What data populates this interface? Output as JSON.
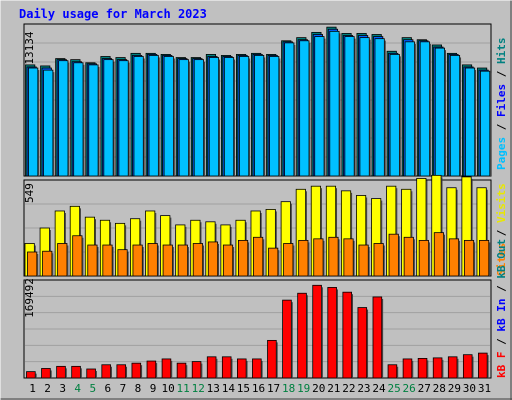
{
  "chart_data": [
    {
      "type": "bar",
      "title": "Daily usage for March 2023",
      "categories": [
        "1",
        "2",
        "3",
        "4",
        "5",
        "6",
        "7",
        "8",
        "9",
        "10",
        "11",
        "12",
        "13",
        "14",
        "15",
        "16",
        "17",
        "18",
        "19",
        "20",
        "21",
        "22",
        "23",
        "24",
        "25",
        "26",
        "27",
        "28",
        "29",
        "30",
        "31"
      ],
      "weekend_days": [
        "4",
        "5",
        "11",
        "12",
        "18",
        "19",
        "25",
        "26"
      ],
      "ylim": [
        0,
        14500
      ],
      "ytick": "13134",
      "ylabel_parts": [
        "Pages",
        "Files",
        "Hits"
      ],
      "series": [
        {
          "name": "Hits",
          "color": "#008080",
          "values": [
            10600,
            10500,
            11200,
            11100,
            10800,
            11400,
            11300,
            11700,
            11700,
            11600,
            11300,
            11300,
            11600,
            11500,
            11600,
            11700,
            11600,
            12900,
            13200,
            13700,
            14200,
            13600,
            13600,
            13500,
            11900,
            13200,
            13000,
            12500,
            11700,
            10600,
            10300
          ]
        },
        {
          "name": "Files",
          "color": "#0060ff",
          "values": [
            10400,
            10300,
            11100,
            10900,
            10700,
            11200,
            11100,
            11500,
            11600,
            11500,
            11200,
            11200,
            11400,
            11400,
            11500,
            11600,
            11500,
            12800,
            13000,
            13500,
            14000,
            13400,
            13400,
            13300,
            11700,
            13000,
            12900,
            12300,
            11600,
            10400,
            10100
          ]
        },
        {
          "name": "Pages",
          "color": "#00c0ff",
          "values": [
            10300,
            10100,
            11000,
            10800,
            10600,
            11100,
            11000,
            11400,
            11500,
            11400,
            11100,
            11100,
            11300,
            11300,
            11400,
            11500,
            11400,
            12700,
            12900,
            13300,
            13800,
            13300,
            13200,
            13100,
            11600,
            12800,
            12800,
            12200,
            11500,
            10300,
            10000
          ]
        }
      ]
    },
    {
      "type": "bar",
      "categories": [
        "1",
        "2",
        "3",
        "4",
        "5",
        "6",
        "7",
        "8",
        "9",
        "10",
        "11",
        "12",
        "13",
        "14",
        "15",
        "16",
        "17",
        "18",
        "19",
        "20",
        "21",
        "22",
        "23",
        "24",
        "25",
        "26",
        "27",
        "28",
        "29",
        "30",
        "31"
      ],
      "ylim": [
        0,
        620
      ],
      "ytick": "549",
      "ylabel_parts": [
        "Sites",
        "Visits"
      ],
      "series": [
        {
          "name": "Visits",
          "color": "#ffff00",
          "values": [
            210,
            310,
            420,
            450,
            380,
            360,
            340,
            370,
            420,
            390,
            330,
            360,
            350,
            330,
            360,
            420,
            430,
            480,
            560,
            580,
            580,
            550,
            520,
            500,
            580,
            560,
            630,
            650,
            570,
            640,
            570
          ]
        },
        {
          "name": "Sites",
          "color": "#ff8000",
          "values": [
            155,
            160,
            210,
            260,
            200,
            200,
            170,
            200,
            210,
            200,
            200,
            210,
            220,
            200,
            230,
            250,
            180,
            210,
            230,
            240,
            250,
            240,
            200,
            210,
            270,
            250,
            230,
            280,
            240,
            230,
            230
          ]
        }
      ]
    },
    {
      "type": "bar",
      "categories": [
        "1",
        "2",
        "3",
        "4",
        "5",
        "6",
        "7",
        "8",
        "9",
        "10",
        "11",
        "12",
        "13",
        "14",
        "15",
        "16",
        "17",
        "18",
        "19",
        "20",
        "21",
        "22",
        "23",
        "24",
        "25",
        "26",
        "27",
        "28",
        "29",
        "30",
        "31"
      ],
      "ylim": [
        0,
        185000
      ],
      "ytick": "169492",
      "ylabel_parts": [
        "kB F",
        "kB In",
        "kB Out"
      ],
      "series": [
        {
          "name": "kB F",
          "color": "#ff0000",
          "values": [
            12000,
            18000,
            22000,
            22000,
            17000,
            25000,
            25000,
            28000,
            32000,
            36000,
            28000,
            31000,
            40000,
            40000,
            36000,
            36000,
            71000,
            147000,
            160000,
            175000,
            171000,
            162000,
            133000,
            153000,
            25000,
            36000,
            37000,
            38000,
            40000,
            44000,
            47000
          ]
        }
      ]
    }
  ],
  "colors": {
    "background": "#c0c0c0",
    "title": "#0000ff",
    "weekday_label": "#000000",
    "weekend_label": "#008040",
    "legend_pages": "#00c0ff",
    "legend_files": "#0000ff",
    "legend_hits": "#008080",
    "legend_sites": "#ff8000",
    "legend_visits": "#e8e800",
    "legend_kbf": "#ff0000",
    "legend_kbin": "#0000ff",
    "legend_kbout": "#008080",
    "separator": "#000000"
  }
}
